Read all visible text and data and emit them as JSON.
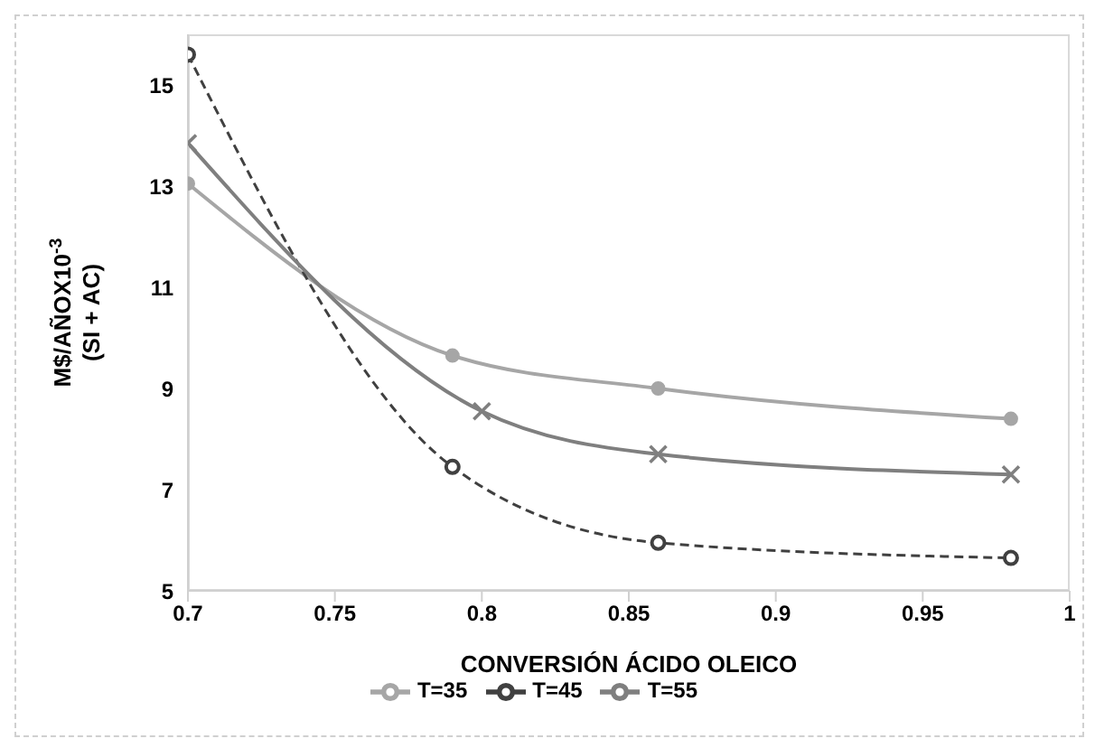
{
  "chart_data": {
    "type": "line",
    "xlabel": "CONVERSIÓN ÁCIDO OLEICO",
    "ylabel": "M$/AÑOX10$^{-3}$\n(SI + AC)",
    "xlim": [
      0.7,
      1
    ],
    "xticks": [
      0.7,
      0.75,
      0.8,
      0.85,
      0.9,
      0.95,
      1
    ],
    "ylim": [
      5,
      16
    ],
    "yticks": [
      5,
      7,
      9,
      11,
      13,
      15
    ],
    "grid": false,
    "legend": "bottom",
    "series": [
      {
        "name": "T=35",
        "color": "#a6a6a6",
        "marker": "circle",
        "line_style": "solid",
        "x": [
          0.7,
          0.79,
          0.86,
          0.98
        ],
        "values": [
          13.05,
          9.65,
          9.0,
          8.4
        ]
      },
      {
        "name": "T=45",
        "color": "#404040",
        "marker": "open-circle",
        "line_style": "dashed",
        "x": [
          0.7,
          0.79,
          0.86,
          0.98
        ],
        "values": [
          15.6,
          7.45,
          5.95,
          5.65
        ]
      },
      {
        "name": "T=55",
        "color": "#7f7f7f",
        "marker": "cross",
        "line_style": "solid",
        "x": [
          0.7,
          0.8,
          0.86,
          0.98
        ],
        "values": [
          13.85,
          8.55,
          7.7,
          7.3
        ]
      }
    ]
  }
}
